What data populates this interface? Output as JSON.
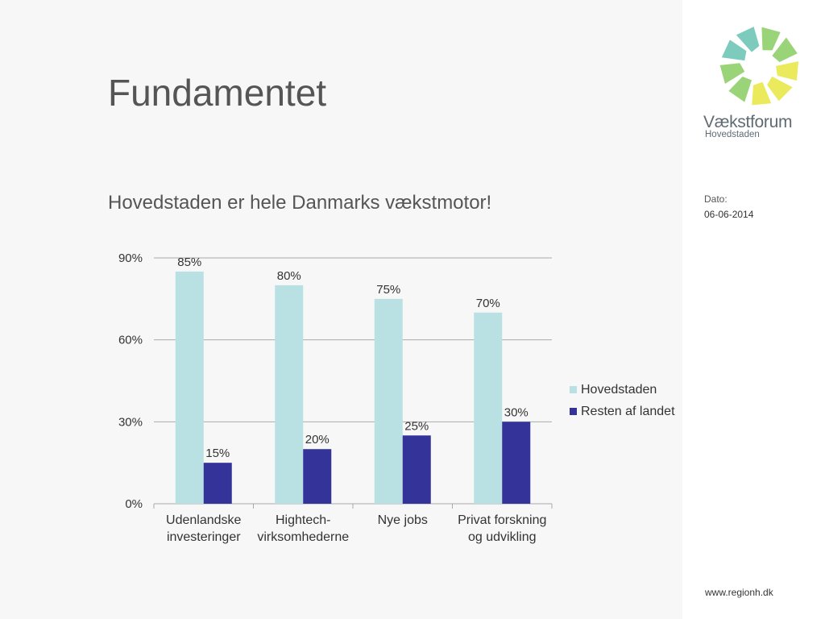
{
  "slide": {
    "title": "Fundamentet",
    "subtitle": "Hovedstaden er hele Danmarks vækstmotor!"
  },
  "sidebar": {
    "logo_name": "Vækstforum",
    "logo_sub": "Hovedstaden",
    "date_label": "Dato:",
    "date_value": "06-06-2014",
    "footer_url": "www.regionh.dk"
  },
  "colors": {
    "hovedstaden": "#b9e1e4",
    "resten": "#333399",
    "grid": "#aaaaaa",
    "logo_yellow": "#e8e84a",
    "logo_green": "#8fcf6a",
    "logo_teal": "#6fc5b5"
  },
  "chart_data": {
    "type": "bar",
    "categories": [
      [
        "Udenlandske",
        "investeringer"
      ],
      [
        "Hightech-",
        "virksomhederne"
      ],
      [
        "Nye jobs"
      ],
      [
        "Privat forskning",
        "og udvikling"
      ]
    ],
    "series": [
      {
        "name": "Hovedstaden",
        "values": [
          85,
          80,
          75,
          70
        ],
        "labels": [
          "85%",
          "80%",
          "75%",
          "70%"
        ]
      },
      {
        "name": "Resten af landet",
        "values": [
          15,
          20,
          25,
          30
        ],
        "labels": [
          "15%",
          "20%",
          "25%",
          "30%"
        ]
      }
    ],
    "ylim": [
      0,
      90
    ],
    "yticks": [
      0,
      30,
      60,
      90
    ],
    "ytick_labels": [
      "0%",
      "30%",
      "60%",
      "90%"
    ],
    "grid": true,
    "legend_position": "right"
  }
}
